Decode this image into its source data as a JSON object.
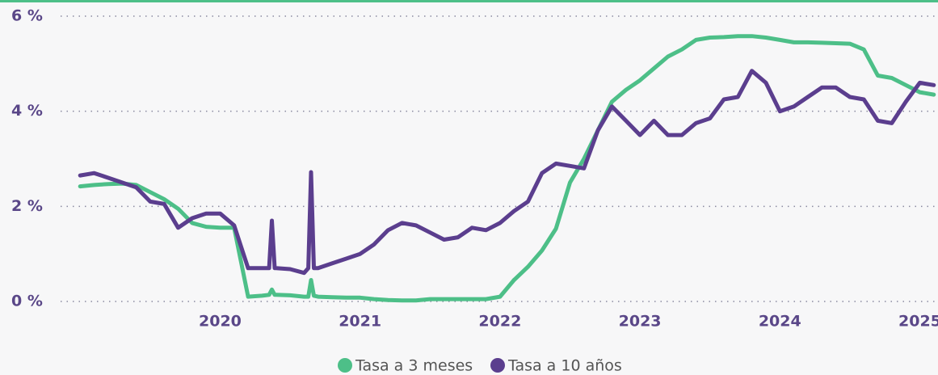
{
  "chart_data": {
    "type": "line",
    "x": [
      2019,
      2019.1,
      2019.2,
      2019.3,
      2019.4,
      2019.5,
      2019.6,
      2019.7,
      2019.8,
      2019.9,
      2020,
      2020.1,
      2020.2,
      2020.3,
      2020.35,
      2020.37,
      2020.39,
      2020.4,
      2020.5,
      2020.6,
      2020.63,
      2020.65,
      2020.67,
      2020.7,
      2020.8,
      2020.9,
      2021,
      2021.1,
      2021.2,
      2021.3,
      2021.4,
      2021.5,
      2021.6,
      2021.7,
      2021.8,
      2021.9,
      2022,
      2022.1,
      2022.2,
      2022.3,
      2022.4,
      2022.5,
      2022.6,
      2022.7,
      2022.8,
      2022.9,
      2023,
      2023.1,
      2023.2,
      2023.3,
      2023.4,
      2023.5,
      2023.6,
      2023.7,
      2023.8,
      2023.9,
      2024,
      2024.1,
      2024.2,
      2024.3,
      2024.4,
      2024.5,
      2024.6,
      2024.7,
      2024.8,
      2024.9,
      2025,
      2025.1
    ],
    "series": [
      {
        "name": "Tasa a 3 meses",
        "color": "#4dbf88",
        "values": [
          2.42,
          2.45,
          2.47,
          2.48,
          2.45,
          2.3,
          2.15,
          1.95,
          1.65,
          1.57,
          1.55,
          1.55,
          0.1,
          0.12,
          0.14,
          0.25,
          0.14,
          0.14,
          0.13,
          0.1,
          0.1,
          0.45,
          0.12,
          0.1,
          0.09,
          0.08,
          0.08,
          0.05,
          0.03,
          0.02,
          0.02,
          0.05,
          0.05,
          0.05,
          0.05,
          0.05,
          0.1,
          0.45,
          0.73,
          1.07,
          1.53,
          2.5,
          3.0,
          3.6,
          4.2,
          4.45,
          4.65,
          4.9,
          5.15,
          5.3,
          5.5,
          5.55,
          5.56,
          5.58,
          5.58,
          5.55,
          5.5,
          5.45,
          5.45,
          5.44,
          5.43,
          5.42,
          5.3,
          4.75,
          4.7,
          4.55,
          4.4,
          4.35
        ]
      },
      {
        "name": "Tasa a 10 años",
        "color": "#5b3e8e",
        "values": [
          2.65,
          2.7,
          2.6,
          2.5,
          2.4,
          2.1,
          2.05,
          1.55,
          1.75,
          1.85,
          1.85,
          1.6,
          0.7,
          0.7,
          0.7,
          1.7,
          0.7,
          0.7,
          0.68,
          0.6,
          0.7,
          2.72,
          0.7,
          0.7,
          0.8,
          0.9,
          1.0,
          1.2,
          1.5,
          1.65,
          1.6,
          1.45,
          1.3,
          1.35,
          1.55,
          1.5,
          1.65,
          1.9,
          2.1,
          2.7,
          2.9,
          2.85,
          2.8,
          3.6,
          4.1,
          3.8,
          3.5,
          3.8,
          3.5,
          3.5,
          3.75,
          3.85,
          4.25,
          4.3,
          4.85,
          4.6,
          4.0,
          4.1,
          4.3,
          4.5,
          4.5,
          4.3,
          4.25,
          3.8,
          3.75,
          4.2,
          4.6,
          4.55
        ]
      }
    ],
    "xlim": [
      2018.86,
      2025.13
    ],
    "xticks": [
      2020,
      2021,
      2022,
      2023,
      2024,
      2025
    ],
    "ylim": [
      0,
      6
    ],
    "yticks": [
      {
        "value": 0,
        "label": "0 %"
      },
      {
        "value": 2,
        "label": "2 %"
      },
      {
        "value": 4,
        "label": "4 %"
      },
      {
        "value": 6,
        "label": "6 %"
      }
    ],
    "grid": true
  }
}
